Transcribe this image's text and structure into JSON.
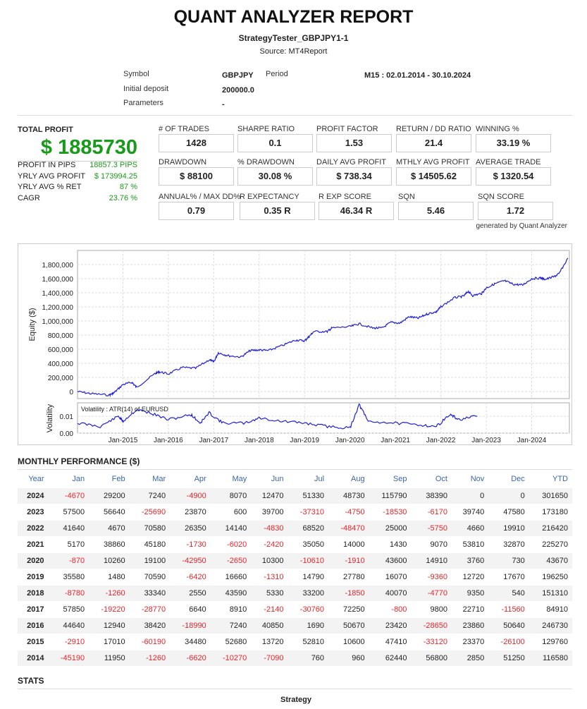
{
  "title": "QUANT ANALYZER REPORT",
  "strategy_name": "StrategyTester_GBPJPY1-1",
  "source": "Source: MT4Report",
  "info": {
    "symbol_label": "Symbol",
    "symbol": "GBPJPY",
    "period_label": "Period",
    "period": "M15 : 02.01.2014 - 30.10.2024",
    "deposit_label": "Initial deposit",
    "deposit": "200000.0",
    "params_label": "Parameters",
    "params": "-"
  },
  "total_profit": {
    "label": "TOTAL PROFIT",
    "value": "$ 1885730",
    "rows": [
      {
        "k": "PROFIT IN PIPS",
        "v": "18857.3 PIPS"
      },
      {
        "k": "YRLY AVG PROFIT",
        "v": "$ 173994.25"
      },
      {
        "k": "YRLY AVG % RET",
        "v": "87 %"
      },
      {
        "k": "CAGR",
        "v": "23.76 %"
      }
    ]
  },
  "stats": [
    {
      "label": "# OF TRADES",
      "value": "1428"
    },
    {
      "label": "SHARPE RATIO",
      "value": "0.1"
    },
    {
      "label": "PROFIT FACTOR",
      "value": "1.53"
    },
    {
      "label": "RETURN / DD RATIO",
      "value": "21.4"
    },
    {
      "label": "WINNING %",
      "value": "33.19 %"
    },
    {
      "label": "DRAWDOWN",
      "value": "$ 88100"
    },
    {
      "label": "% DRAWDOWN",
      "value": "30.08 %"
    },
    {
      "label": "DAILY AVG PROFIT",
      "value": "$ 738.34"
    },
    {
      "label": "MTHLY AVG PROFIT",
      "value": "$ 14505.62"
    },
    {
      "label": "AVERAGE TRADE",
      "value": "$ 1320.54"
    },
    {
      "label": "ANNUAL% / MAX DD%",
      "value": "0.79"
    },
    {
      "label": "R EXPECTANCY",
      "value": "0.35 R"
    },
    {
      "label": "R EXP SCORE",
      "value": "46.34 R"
    },
    {
      "label": "SQN",
      "value": "5.46"
    },
    {
      "label": "SQN SCORE",
      "value": "1.72"
    }
  ],
  "generated_by": "generated by Quant Analyzer",
  "chart_data": [
    {
      "type": "line",
      "ylabel": "Equity ($)",
      "ylim": [
        -100000,
        2000000
      ],
      "yticks": [
        "0",
        "200,000",
        "400,000",
        "600,000",
        "800,000",
        "1,000,000",
        "1,200,000",
        "1,400,000",
        "1,600,000",
        "1,800,000"
      ],
      "ytick_values": [
        0,
        200000,
        400000,
        600000,
        800000,
        1000000,
        1200000,
        1400000,
        1600000,
        1800000
      ],
      "xlim": [
        2014.0,
        2024.83
      ],
      "xticks": [
        "Jan-2015",
        "Jan-2016",
        "Jan-2017",
        "Jan-2018",
        "Jan-2019",
        "Jan-2020",
        "Jan-2021",
        "Jan-2022",
        "Jan-2023",
        "Jan-2024"
      ],
      "grid": true,
      "series": [
        {
          "name": "Equity",
          "color": "#1f1fd6",
          "x": [
            2014.0,
            2014.3,
            2014.7,
            2014.8,
            2015.0,
            2015.2,
            2015.3,
            2015.7,
            2015.8,
            2016.0,
            2016.3,
            2016.6,
            2016.9,
            2017.0,
            2017.1,
            2017.3,
            2017.6,
            2017.8,
            2018.0,
            2018.2,
            2018.5,
            2018.8,
            2019.0,
            2019.1,
            2019.2,
            2019.5,
            2019.6,
            2020.0,
            2020.2,
            2020.5,
            2020.7,
            2020.9,
            2021.1,
            2021.3,
            2021.5,
            2021.7,
            2021.9,
            2022.0,
            2022.3,
            2022.5,
            2022.6,
            2022.7,
            2022.9,
            2023.0,
            2023.2,
            2023.4,
            2023.6,
            2023.8,
            2024.0,
            2024.2,
            2024.3,
            2024.5,
            2024.6,
            2024.8
          ],
          "y": [
            0,
            -30000,
            -50000,
            -20000,
            100000,
            130000,
            60000,
            250000,
            280000,
            250000,
            340000,
            330000,
            450000,
            420000,
            550000,
            510000,
            490000,
            580000,
            590000,
            580000,
            650000,
            730000,
            720000,
            780000,
            850000,
            850000,
            900000,
            920000,
            960000,
            900000,
            900000,
            980000,
            970000,
            1060000,
            1040000,
            1100000,
            1130000,
            1200000,
            1330000,
            1350000,
            1420000,
            1360000,
            1390000,
            1470000,
            1530000,
            1570000,
            1520000,
            1510000,
            1600000,
            1610000,
            1590000,
            1630000,
            1670000,
            1890000
          ]
        }
      ]
    },
    {
      "type": "line",
      "ylabel": "Volatility",
      "annotation": "Volatility : ATR(14) of EURUSD",
      "ylim": [
        0,
        0.018
      ],
      "yticks": [
        "0.00",
        "0.01"
      ],
      "ytick_values": [
        0,
        0.01
      ],
      "series": [
        {
          "name": "ATR(14) EURUSD",
          "color": "#1f1fd6",
          "x": [
            2014.0,
            2014.5,
            2014.9,
            2015.0,
            2015.3,
            2015.6,
            2016.0,
            2016.5,
            2016.7,
            2016.9,
            2017.2,
            2017.7,
            2018.0,
            2018.5,
            2019.0,
            2019.5,
            2020.0,
            2020.2,
            2020.4,
            2021.0,
            2021.5,
            2021.9,
            2022.2,
            2022.4,
            2022.8
          ],
          "y": [
            0.006,
            0.004,
            0.01,
            0.007,
            0.014,
            0.012,
            0.008,
            0.011,
            0.006,
            0.012,
            0.006,
            0.006,
            0.009,
            0.007,
            0.006,
            0.004,
            0.003,
            0.017,
            0.007,
            0.006,
            0.005,
            0.004,
            0.011,
            0.008,
            0.01
          ]
        }
      ]
    }
  ],
  "monthly": {
    "title": "MONTHLY PERFORMANCE ($)",
    "headers": [
      "Year",
      "Jan",
      "Feb",
      "Mar",
      "Apr",
      "May",
      "Jun",
      "Jul",
      "Aug",
      "Sep",
      "Oct",
      "Nov",
      "Dec",
      "YTD"
    ],
    "rows": [
      [
        "2024",
        "-4670",
        "29200",
        "7240",
        "-4900",
        "8070",
        "12470",
        "51330",
        "48730",
        "115790",
        "38390",
        "0",
        "0",
        "301650"
      ],
      [
        "2023",
        "57500",
        "56640",
        "-25690",
        "23870",
        "600",
        "39700",
        "-37310",
        "-4750",
        "-18530",
        "-6170",
        "39740",
        "47580",
        "173180"
      ],
      [
        "2022",
        "41640",
        "4670",
        "70580",
        "26350",
        "14140",
        "-4830",
        "68520",
        "-48470",
        "25000",
        "-5750",
        "4660",
        "19910",
        "216420"
      ],
      [
        "2021",
        "5170",
        "38860",
        "45180",
        "-1730",
        "-6020",
        "-2420",
        "35050",
        "14000",
        "1430",
        "9070",
        "53810",
        "32870",
        "225270"
      ],
      [
        "2020",
        "-870",
        "10260",
        "19100",
        "-42950",
        "-2650",
        "10300",
        "-10610",
        "-1910",
        "43600",
        "14910",
        "3760",
        "730",
        "43670"
      ],
      [
        "2019",
        "35580",
        "1480",
        "70590",
        "-6420",
        "16660",
        "-1310",
        "14790",
        "27780",
        "16070",
        "-9360",
        "12720",
        "17670",
        "196250"
      ],
      [
        "2018",
        "-8780",
        "-1260",
        "33340",
        "2550",
        "43590",
        "5330",
        "33200",
        "-1850",
        "40070",
        "-4770",
        "9350",
        "540",
        "151310"
      ],
      [
        "2017",
        "57850",
        "-19220",
        "-28770",
        "6640",
        "8910",
        "-2140",
        "-30760",
        "72250",
        "-800",
        "9800",
        "22710",
        "-11560",
        "84910"
      ],
      [
        "2016",
        "44640",
        "12940",
        "38420",
        "-18990",
        "7240",
        "40850",
        "1690",
        "50670",
        "23420",
        "-28650",
        "23860",
        "50640",
        "246730"
      ],
      [
        "2015",
        "-2910",
        "17010",
        "-60190",
        "34480",
        "52680",
        "13720",
        "52810",
        "10600",
        "47410",
        "-33120",
        "23370",
        "-26100",
        "129760"
      ],
      [
        "2014",
        "-45190",
        "11950",
        "-1260",
        "-6620",
        "-10270",
        "-7090",
        "760",
        "960",
        "62440",
        "56800",
        "2850",
        "51250",
        "116580"
      ]
    ]
  },
  "stats_section": {
    "title": "STATS",
    "column": "Strategy"
  }
}
